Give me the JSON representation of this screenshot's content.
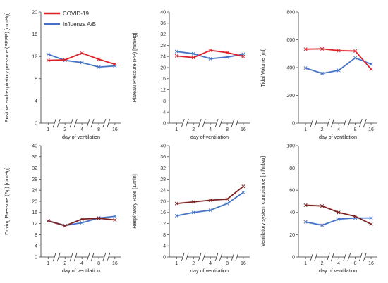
{
  "chart_data": [
    {
      "type": "line",
      "ylabel": "Positive end-expiratory pressure (PEEP) [mmHg]",
      "xlabel": "day of ventilation",
      "categories": [
        "1",
        "2",
        "4",
        "8",
        "16"
      ],
      "ylim": [
        0,
        20
      ],
      "yticks": [
        0,
        4,
        8,
        12,
        16,
        20
      ],
      "series": [
        {
          "name": "COVID-19",
          "color": "#dd1f26",
          "values": [
            11.3,
            11.4,
            12.6,
            11.5,
            10.6
          ]
        },
        {
          "name": "Influenza A/B",
          "color": "#4472c4",
          "values": [
            12.4,
            11.3,
            10.9,
            10.1,
            10.3
          ]
        }
      ]
    },
    {
      "type": "line",
      "ylabel": "Plateau Pressure (PP) [mmHg]",
      "xlabel": "day of ventilation",
      "categories": [
        "1",
        "2",
        "4",
        "8",
        "16"
      ],
      "ylim": [
        0,
        40
      ],
      "yticks": [
        0,
        4,
        8,
        12,
        16,
        20,
        24,
        28,
        32,
        36,
        40
      ],
      "series": [
        {
          "name": "COVID-19",
          "color": "#dd1f26",
          "values": [
            24.2,
            23.6,
            26.2,
            25.4,
            24.0
          ]
        },
        {
          "name": "Influenza A/B",
          "color": "#4472c4",
          "values": [
            25.8,
            25.0,
            23.2,
            23.8,
            24.8
          ]
        }
      ]
    },
    {
      "type": "line",
      "ylabel": "Tidal Volume [ml]",
      "xlabel": "day of ventilation",
      "categories": [
        "1",
        "2",
        "4",
        "8",
        "16"
      ],
      "ylim": [
        0,
        800
      ],
      "yticks": [
        0,
        200,
        400,
        600,
        800
      ],
      "series": [
        {
          "name": "COVID-19",
          "color": "#dd1f26",
          "values": [
            533,
            535,
            522,
            519,
            388
          ]
        },
        {
          "name": "Influenza A/B",
          "color": "#4472c4",
          "values": [
            397,
            358,
            380,
            470,
            425
          ]
        }
      ]
    },
    {
      "type": "line",
      "ylabel": "Driving Pressure (Δp) [mmHg]",
      "xlabel": "day of ventilation",
      "categories": [
        "1",
        "2",
        "4",
        "8",
        "16"
      ],
      "ylim": [
        0,
        40
      ],
      "yticks": [
        0,
        4,
        8,
        12,
        16,
        20,
        24,
        28,
        32,
        36,
        40
      ],
      "series": [
        {
          "name": "COVID-19",
          "color": "#7a2020",
          "values": [
            13.0,
            11.2,
            13.6,
            13.9,
            13.3
          ]
        },
        {
          "name": "Influenza A/B",
          "color": "#4472c4",
          "values": [
            13.0,
            11.3,
            12.3,
            14.0,
            14.6
          ]
        }
      ]
    },
    {
      "type": "line",
      "ylabel": "Respiratory Rate [1/min]",
      "xlabel": "day of ventilation",
      "categories": [
        "1",
        "2",
        "4",
        "8",
        "16"
      ],
      "ylim": [
        0,
        40
      ],
      "yticks": [
        0,
        4,
        8,
        12,
        16,
        20,
        24,
        28,
        32,
        36,
        40
      ],
      "series": [
        {
          "name": "COVID-19",
          "color": "#7a2020",
          "values": [
            19.2,
            19.8,
            20.4,
            20.8,
            25.4
          ]
        },
        {
          "name": "Influenza A/B",
          "color": "#4472c4",
          "values": [
            14.8,
            16.0,
            16.8,
            19.2,
            23.2
          ]
        }
      ]
    },
    {
      "type": "line",
      "ylabel": "Ventilatory system compliance [ml/mbar]",
      "xlabel": "day of ventilation",
      "categories": [
        "1",
        "2",
        "4",
        "8",
        "16"
      ],
      "ylim": [
        0,
        100
      ],
      "yticks": [
        0,
        20,
        40,
        60,
        80,
        100
      ],
      "series": [
        {
          "name": "COVID-19",
          "color": "#7a2020",
          "values": [
            46.5,
            45.8,
            40.0,
            36.5,
            29.5
          ]
        },
        {
          "name": "Influenza A/B",
          "color": "#4472c4",
          "values": [
            31.5,
            28.5,
            34.0,
            35.0,
            35.0
          ]
        }
      ]
    }
  ],
  "legend": {
    "items": [
      {
        "label": "COVID-19",
        "color": "#dd1f26"
      },
      {
        "label": "Influenza A/B",
        "color": "#4472c4"
      }
    ]
  }
}
